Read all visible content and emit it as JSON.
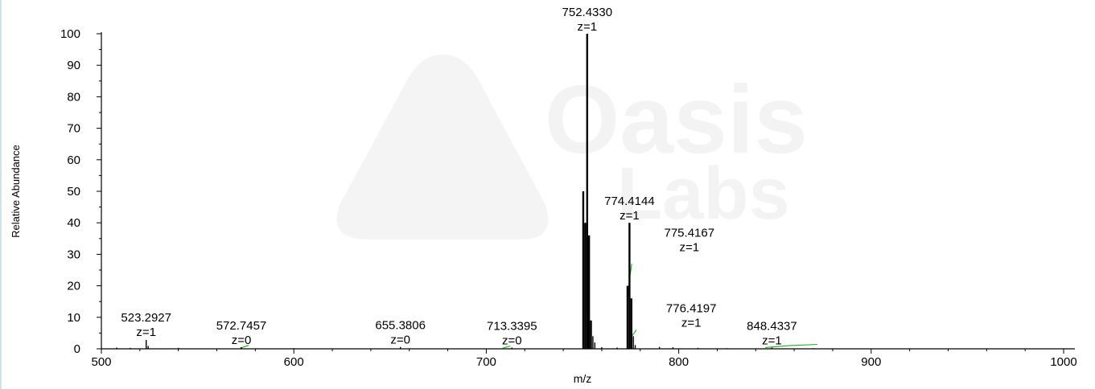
{
  "chart_data": {
    "type": "bar",
    "title": "",
    "xlabel": "m/z",
    "ylabel": "Relative Abundance",
    "xlim": [
      500,
      1000
    ],
    "ylim": [
      0,
      100
    ],
    "x_ticks": [
      500,
      600,
      700,
      800,
      900,
      1000
    ],
    "y_ticks": [
      0,
      10,
      20,
      30,
      40,
      50,
      60,
      70,
      80,
      90,
      100
    ],
    "grid": false,
    "legend": "none",
    "series": [
      {
        "values": [
          {
            "x": 508,
            "y": 0.4
          },
          {
            "x": 515,
            "y": 0.3
          },
          {
            "x": 523.2927,
            "y": 2.8
          },
          {
            "x": 524.3,
            "y": 0.9
          },
          {
            "x": 540,
            "y": 0.3
          },
          {
            "x": 572.7457,
            "y": 0.5
          },
          {
            "x": 600,
            "y": 0.2
          },
          {
            "x": 655.3806,
            "y": 0.6
          },
          {
            "x": 713.3395,
            "y": 0.4
          },
          {
            "x": 750.4,
            "y": 50
          },
          {
            "x": 751.4,
            "y": 40
          },
          {
            "x": 752.433,
            "y": 100
          },
          {
            "x": 753.4,
            "y": 36
          },
          {
            "x": 754.4,
            "y": 9
          },
          {
            "x": 755.4,
            "y": 4
          },
          {
            "x": 756.4,
            "y": 2
          },
          {
            "x": 760,
            "y": 0.5
          },
          {
            "x": 768,
            "y": 0.4
          },
          {
            "x": 773.4,
            "y": 20
          },
          {
            "x": 774.4144,
            "y": 40
          },
          {
            "x": 775.4167,
            "y": 16
          },
          {
            "x": 776.4197,
            "y": 4
          },
          {
            "x": 777.4,
            "y": 1.2
          },
          {
            "x": 790,
            "y": 0.6
          },
          {
            "x": 797,
            "y": 0.5
          },
          {
            "x": 810,
            "y": 0.3
          },
          {
            "x": 825,
            "y": 0.2
          },
          {
            "x": 848.4337,
            "y": 0.4
          },
          {
            "x": 870,
            "y": 0.2
          }
        ]
      }
    ],
    "annotations": [
      {
        "mz": "752.4330",
        "z": "z=1",
        "x": 752.433,
        "y": 100
      },
      {
        "mz": "774.4144",
        "z": "z=1",
        "x": 774.4144,
        "y": 40
      },
      {
        "mz": "775.4167",
        "z": "z=1",
        "x": 775.4167,
        "y": 30
      },
      {
        "mz": "776.4197",
        "z": "z=1",
        "x": 776.4197,
        "y": 6
      },
      {
        "mz": "523.2927",
        "z": "z=1",
        "x": 523.2927,
        "y": 3
      },
      {
        "mz": "572.7457",
        "z": "z=0",
        "x": 572.7457,
        "y": 0.5
      },
      {
        "mz": "655.3806",
        "z": "z=0",
        "x": 655.3806,
        "y": 0.6
      },
      {
        "mz": "713.3395",
        "z": "z=0",
        "x": 713.3395,
        "y": 0.4
      },
      {
        "mz": "848.4337",
        "z": "z=1",
        "x": 848.4337,
        "y": 0.4
      }
    ],
    "isotope_envelopes": [
      {
        "points": [
          [
            773.4,
            15
          ],
          [
            774.4,
            22
          ],
          [
            775.6,
            27
          ]
        ]
      },
      {
        "points": [
          [
            775.6,
            4
          ],
          [
            778.0,
            6
          ]
        ]
      },
      {
        "points": [
          [
            845,
            0.4
          ],
          [
            857,
            1.0
          ],
          [
            872,
            1.4
          ]
        ]
      },
      {
        "points": [
          [
            572.0,
            0.2
          ],
          [
            576.5,
            1.1
          ]
        ]
      },
      {
        "points": [
          [
            708.5,
            0.2
          ],
          [
            712.5,
            0.9
          ]
        ]
      }
    ]
  },
  "watermark": {
    "line1": "Oasis",
    "line2": "Labs"
  },
  "colors": {
    "bars": "#000000",
    "axes": "#000000",
    "envelope": "#22aa22",
    "watermark": "#f4f4f4"
  }
}
